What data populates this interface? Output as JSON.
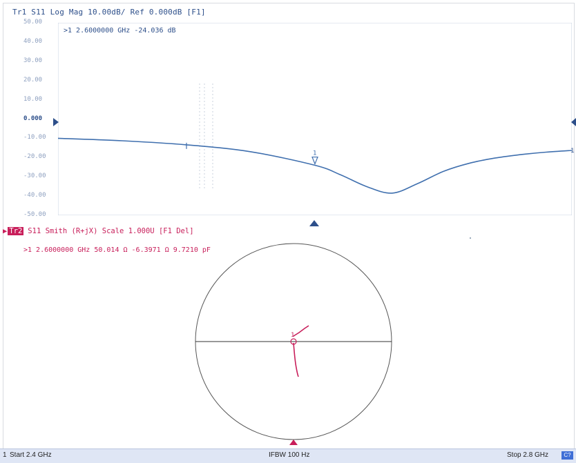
{
  "trace1": {
    "title": "Tr1 S11 Log Mag 10.00dB/ Ref 0.000dB [F1]",
    "marker_readout": ">1   2.6000000 GHz  -24.036 dB",
    "y_ticks": [
      "50.00",
      "40.00",
      "30.00",
      "20.00",
      "10.00",
      "0.000",
      "-10.00",
      "-20.00",
      "-30.00",
      "-40.00",
      "-50.00"
    ],
    "marker_label": "1",
    "color": "#3f6fae"
  },
  "chart_data": {
    "type": "line",
    "title": "Tr1 S11 Log Mag 10.00dB/ Ref 0.000dB [F1]",
    "xlabel": "",
    "ylabel": "",
    "xlim": [
      2.4,
      2.8
    ],
    "ylim": [
      -50,
      50
    ],
    "y_ticks": [
      50,
      40,
      30,
      20,
      10,
      0,
      -10,
      -20,
      -30,
      -40,
      -50
    ],
    "x_unit": "GHz",
    "y_unit": "dB",
    "grid": false,
    "series": [
      {
        "x": [
          2.4,
          2.45,
          2.5,
          2.55,
          2.6,
          2.62,
          2.64,
          2.66,
          2.68,
          2.7,
          2.72,
          2.74,
          2.76,
          2.78,
          2.8
        ],
        "values": [
          -10.0,
          -11.3,
          -13.4,
          -17.0,
          -24.0,
          -29.0,
          -35.0,
          -38.5,
          -33.5,
          -27.2,
          -23.0,
          -20.3,
          -18.5,
          -17.2,
          -16.3
        ]
      }
    ],
    "markers": [
      {
        "label": "1",
        "x": 2.6,
        "y": -24.036
      }
    ]
  },
  "trace2": {
    "badge": "Tr2",
    "header": "S11 Smith (R+jX) Scale 1.000U [F1 Del]",
    "marker_readout": ">1   2.6000000 GHz   50.014 Ω  -6.3971 Ω   9.7210 pF",
    "marker_label": "1",
    "color": "#c81e5a"
  },
  "status": {
    "channel": "1",
    "start": "Start 2.4 GHz",
    "ifbw": "IFBW 100 Hz",
    "stop": "Stop 2.8 GHz",
    "badge": "C?"
  }
}
